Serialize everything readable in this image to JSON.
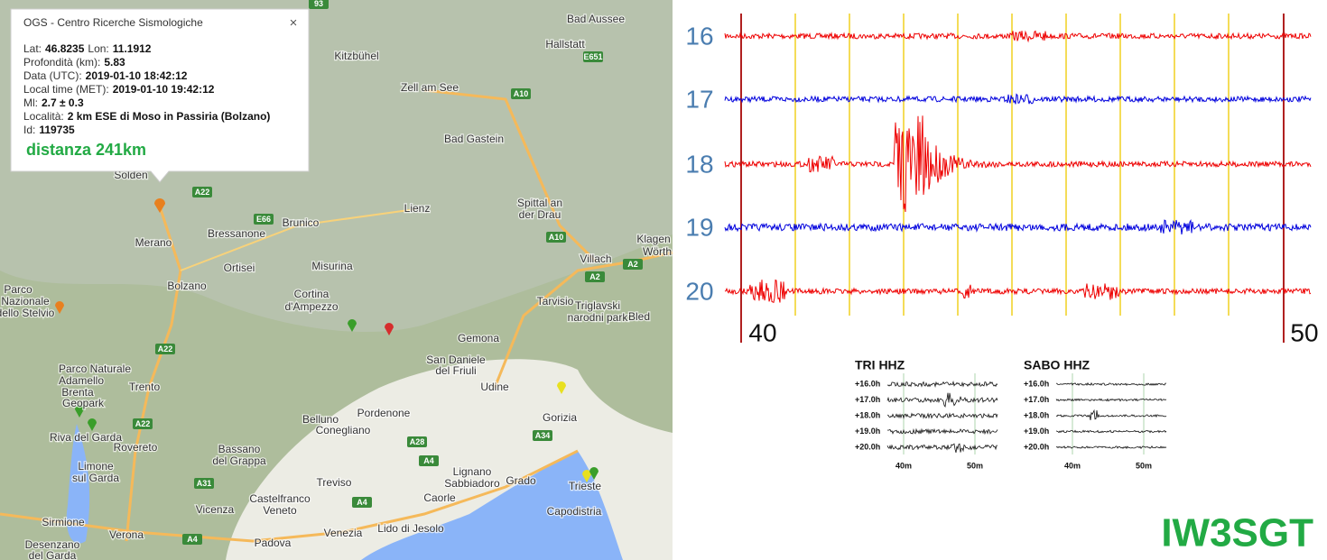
{
  "popup": {
    "title": "OGS - Centro Ricerche Sismologiche",
    "close": "×",
    "rows": [
      [
        {
          "label": "Lat:",
          "value": "46.8235"
        },
        {
          "label": "Lon:",
          "value": "11.1912"
        }
      ],
      [
        {
          "label": "Profondità (km):",
          "value": "5.83"
        }
      ],
      [
        {
          "label": "Data (UTC):",
          "value": "2019-01-10 18:42:12"
        }
      ],
      [
        {
          "label": "Local time (MET):",
          "value": "2019-01-10 19:42:12"
        }
      ],
      [
        {
          "label": "Ml:",
          "value": "2.7 ± 0.3"
        }
      ],
      [
        {
          "label": "Località:",
          "value": "2 km ESE di Moso in Passiria (Bolzano)"
        }
      ],
      [
        {
          "label": "Id:",
          "value": "119735"
        }
      ]
    ],
    "distance": "distanza 241km"
  },
  "map": {
    "places": [
      "Merano",
      "Bolzano",
      "Trento",
      "Rovereto",
      "Cortina",
      "d'Ampezzo",
      "Belluno",
      "Pordenone",
      "Udine",
      "Gorizia",
      "Trieste",
      "Conegliano",
      "Treviso",
      "Venezia",
      "Vicenza",
      "Padova",
      "Bassano",
      "del Grappa",
      "Castelfranco",
      "Veneto",
      "Lienz",
      "Brunico",
      "Villach",
      "Bad Gastein",
      "Kitzbühel",
      "Zell am See",
      "Spittal an",
      "der Drau",
      "Klagen",
      "Wörth",
      "Capodistria",
      "Lignano",
      "Sabbiadoro",
      "Caorle",
      "Lido di Jesolo",
      "Grado",
      "Riva del Garda",
      "Verona",
      "Sirmione",
      "Desenzano",
      "del Garda",
      "Tarvisio",
      "Gemona",
      "Bled",
      "Hallstatt",
      "Bad Aussee",
      "San Daniele",
      "del Friuli",
      "Misurina",
      "Bressanone",
      "Ortisei",
      "Parco",
      "Nazionale",
      "dello Stelvio",
      "Parco Naturale",
      "Adamello",
      "Brenta",
      "Geopark",
      "Triglavski",
      "narodni park",
      "Lienz",
      "Solden",
      "Limone",
      "sul Garda"
    ],
    "roads": [
      "A22",
      "E66",
      "A10",
      "A10",
      "A2",
      "A2",
      "A22",
      "A22",
      "A4",
      "A28",
      "A34",
      "A31",
      "A4",
      "E651",
      "93",
      "A4"
    ]
  },
  "seismogram": {
    "hours": [
      "16",
      "17",
      "18",
      "19",
      "20"
    ],
    "minutes": [
      "40",
      "50"
    ]
  },
  "thumbnails": [
    {
      "title": "TRI HHZ",
      "rows": [
        "+16.0h",
        "+17.0h",
        "+18.0h",
        "+19.0h",
        "+20.0h"
      ],
      "minutes": [
        "40m",
        "50m"
      ]
    },
    {
      "title": "SABO HHZ",
      "rows": [
        "+16.0h",
        "+17.0h",
        "+18.0h",
        "+19.0h",
        "+20.0h"
      ],
      "minutes": [
        "40m",
        "50m"
      ]
    }
  ],
  "callsign": "IW3SGT"
}
